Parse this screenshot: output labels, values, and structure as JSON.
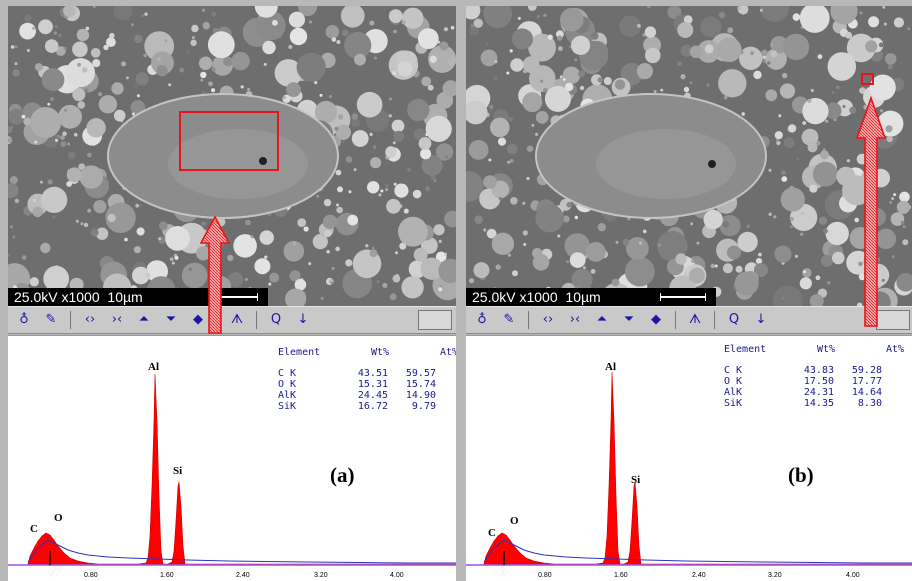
{
  "panels": [
    {
      "id": "a",
      "scalebar": {
        "voltage": "25.0kV",
        "magnification": "x1000",
        "scale": "10µm"
      },
      "toolbar_icons": [
        "probe-icon",
        "brush-icon",
        "expand-icon",
        "compress-icon",
        "peak-up-icon",
        "peak-down-icon",
        "erase-icon",
        "spectrum-icon",
        "zoom-icon",
        "down-arrow-icon"
      ],
      "table": {
        "headers": [
          "Element",
          "Wt%",
          "At%"
        ],
        "rows": [
          {
            "element": "C K",
            "wt": "43.51",
            "at": "59.57"
          },
          {
            "element": "O K",
            "wt": "15.31",
            "at": "15.74"
          },
          {
            "element": "AlK",
            "wt": "24.45",
            "at": "14.90"
          },
          {
            "element": "SiK",
            "wt": "16.72",
            "at": "9.79"
          }
        ]
      },
      "tag": "(a)",
      "peak_labels": [
        "C",
        "O",
        "Al",
        "Si"
      ],
      "x_ticks": [
        "0.80",
        "1.60",
        "2.40",
        "3.20",
        "4.00"
      ],
      "selection": "rectangle"
    },
    {
      "id": "b",
      "scalebar": {
        "voltage": "25.0kV",
        "magnification": "x1000",
        "scale": "10µm"
      },
      "toolbar_icons": [
        "probe-icon",
        "brush-icon",
        "expand-icon",
        "compress-icon",
        "peak-up-icon",
        "peak-down-icon",
        "erase-icon",
        "spectrum-icon",
        "zoom-icon",
        "down-arrow-icon"
      ],
      "table": {
        "headers": [
          "Element",
          "Wt%",
          "At%"
        ],
        "rows": [
          {
            "element": "C K",
            "wt": "43.83",
            "at": "59.28"
          },
          {
            "element": "O K",
            "wt": "17.50",
            "at": "17.77"
          },
          {
            "element": "AlK",
            "wt": "24.31",
            "at": "14.64"
          },
          {
            "element": "SiK",
            "wt": "14.35",
            "at": "8.30"
          }
        ]
      },
      "tag": "(b)",
      "peak_labels": [
        "C",
        "O",
        "Al",
        "Si"
      ],
      "x_ticks": [
        "0.80",
        "1.60",
        "2.40",
        "3.20",
        "4.00"
      ],
      "selection": "small-square"
    }
  ],
  "colors": {
    "selection": "#e8141b",
    "spectrum_fill": "#ff0000",
    "background_curve": "#3030c0",
    "axis": "#8a2be2",
    "table_text": "#1a1a8a"
  }
}
